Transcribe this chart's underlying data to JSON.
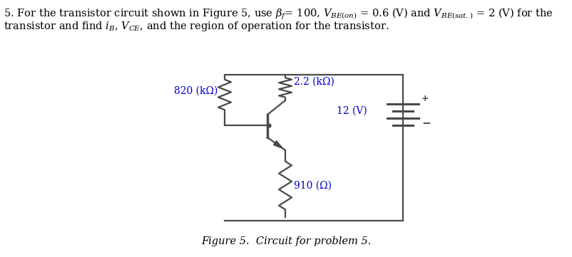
{
  "title_line1": "5. For the transistor circuit shown in Figure 5, use ",
  "title_beta": "β",
  "title_rest": "= 100, ",
  "title_full": "5. For the transistor circuit shown in Figure 5, use βf= 100, VBE(on) = 0.6 (V) and VBE(sat.) = 2 (V) for the\ntransistor and find iB, VCE, and the region of operation for the transistor.",
  "figure_caption": "Figure 5.  Circuit for problem 5.",
  "label_820": "820 (kΩ)",
  "label_22": "2.2 (kΩ)",
  "label_910": "910 (Ω)",
  "label_12V": "12 (V)",
  "text_color": "#0000cc",
  "line_color": "#4a4a4a",
  "bg_color": "#ffffff",
  "font_size_title": 10.5,
  "font_size_caption": 10.5,
  "font_size_labels": 10
}
